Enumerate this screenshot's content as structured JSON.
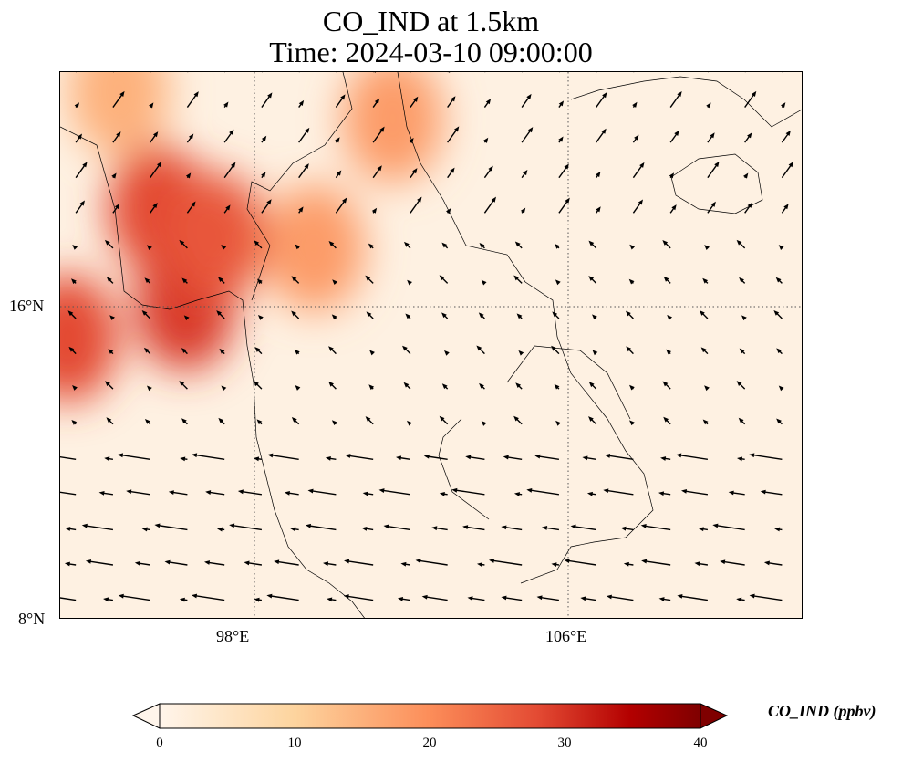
{
  "title": {
    "line1": "CO_IND at 1.5km",
    "line2": "Time: 2024-03-10 09:00:00"
  },
  "chart_data": {
    "type": "heatmap",
    "variable": "CO_IND",
    "units": "ppbv",
    "lon_range": [
      93.0,
      112.0
    ],
    "lat_range": [
      8.0,
      22.0
    ],
    "x_ticks": [
      {
        "value": 98,
        "label": "98°E"
      },
      {
        "value": 106,
        "label": "106°E"
      }
    ],
    "y_ticks": [
      {
        "value": 16,
        "label": "16°N"
      },
      {
        "value": 8,
        "label": "8°N"
      }
    ],
    "gridlines": "dotted",
    "colorbar": {
      "label": "CO_IND (ppbv)",
      "range": [
        0,
        40
      ],
      "ticks": [
        "0",
        "10",
        "20",
        "30",
        "40"
      ],
      "extend": "both",
      "colors": [
        "#fff5eb",
        "#fdd49e",
        "#fc8d59",
        "#d7301f",
        "#b30000",
        "#7f0000"
      ],
      "placement": "bottom"
    },
    "plume_centers": [
      {
        "lon": 95.5,
        "lat": 18.5,
        "value": 30
      },
      {
        "lon": 96.2,
        "lat": 16.0,
        "value": 32
      },
      {
        "lon": 93.2,
        "lat": 15.2,
        "value": 30
      },
      {
        "lon": 97.0,
        "lat": 17.8,
        "value": 28
      },
      {
        "lon": 99.5,
        "lat": 17.5,
        "value": 18
      },
      {
        "lon": 101.5,
        "lat": 20.8,
        "value": 18
      },
      {
        "lon": 94.5,
        "lat": 21.5,
        "value": 15
      }
    ],
    "wind_regime": [
      {
        "region": "south",
        "lat_max": 13,
        "u": -1,
        "v": 0.15
      },
      {
        "region": "central",
        "lat_max": 18,
        "u": -0.3,
        "v": 0.3
      },
      {
        "region": "north",
        "lat_max": 22,
        "u": 0.5,
        "v": 0.7
      }
    ]
  }
}
